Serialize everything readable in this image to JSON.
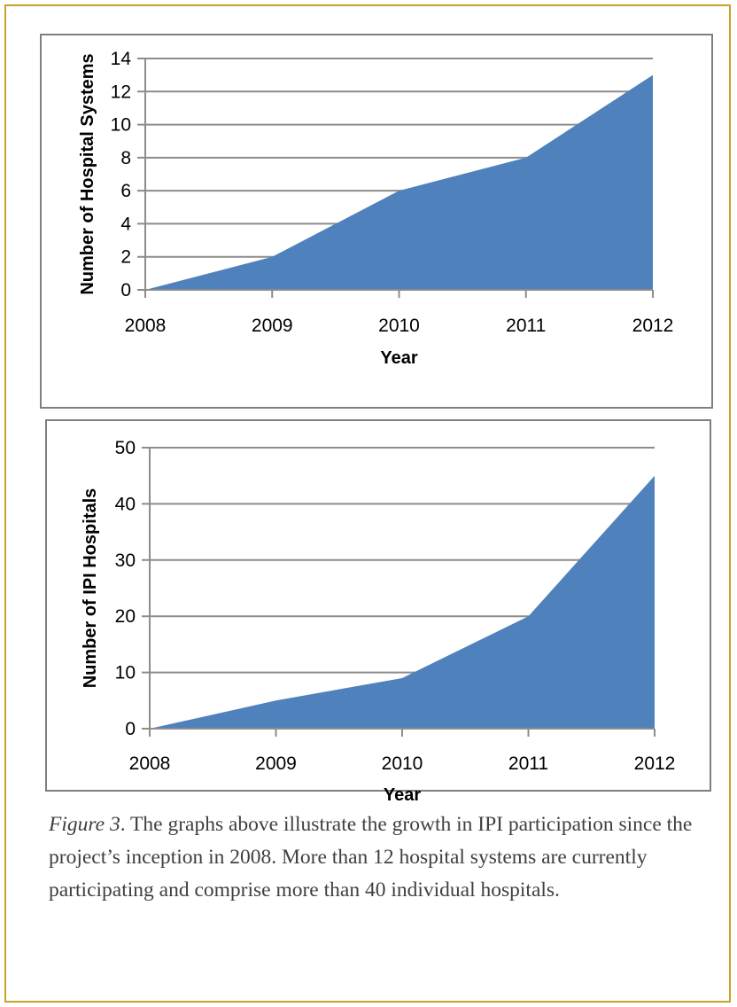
{
  "colors": {
    "frame_border": "#c9a227",
    "chart_border": "#7f7f7f",
    "area_fill": "#4f81bd",
    "gridline": "#8c8c8c"
  },
  "chart_data": [
    {
      "type": "area",
      "x": [
        "2008",
        "2009",
        "2010",
        "2011",
        "2012"
      ],
      "series": [
        {
          "values": [
            0,
            2,
            6,
            8,
            13
          ]
        }
      ],
      "xlabel": "Year",
      "ylabel": "Number of Hospital Systems",
      "ylim": [
        0,
        14
      ],
      "yticks": [
        "0",
        "2",
        "4",
        "6",
        "8",
        "10",
        "12",
        "14"
      ],
      "grid": true
    },
    {
      "type": "area",
      "x": [
        "2008",
        "2009",
        "2010",
        "2011",
        "2012"
      ],
      "series": [
        {
          "values": [
            0,
            5,
            9,
            20,
            45
          ]
        }
      ],
      "xlabel": "Year",
      "ylabel": "Number of IPI Hospitals",
      "ylim": [
        0,
        50
      ],
      "yticks": [
        "0",
        "10",
        "20",
        "30",
        "40",
        "50"
      ],
      "grid": true
    }
  ],
  "caption": {
    "label": "Figure 3",
    "text": ". The graphs above illustrate the growth in IPI participation since the project’s inception in 2008. More than 12 hospital systems are currently participating and comprise more than 40 individual hospitals."
  }
}
